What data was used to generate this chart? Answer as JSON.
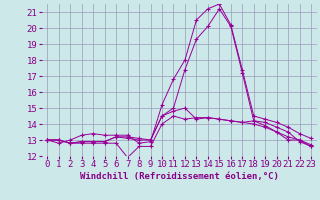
{
  "x": [
    0,
    1,
    2,
    3,
    4,
    5,
    6,
    7,
    8,
    9,
    10,
    11,
    12,
    13,
    14,
    15,
    16,
    17,
    18,
    19,
    20,
    21,
    22,
    23
  ],
  "series": [
    [
      13.0,
      13.0,
      12.8,
      12.8,
      12.8,
      12.8,
      12.8,
      11.9,
      12.6,
      12.6,
      14.0,
      14.5,
      14.3,
      14.4,
      14.4,
      14.3,
      14.2,
      14.1,
      14.0,
      13.8,
      13.5,
      13.0,
      13.0,
      12.6
    ],
    [
      13.0,
      13.0,
      12.8,
      12.9,
      12.9,
      12.9,
      13.2,
      13.1,
      13.0,
      13.0,
      14.5,
      14.8,
      15.0,
      14.3,
      14.4,
      14.3,
      14.2,
      14.1,
      14.2,
      13.9,
      13.5,
      13.2,
      13.0,
      12.7
    ],
    [
      13.0,
      13.0,
      12.8,
      12.9,
      12.9,
      12.9,
      13.2,
      13.2,
      13.1,
      13.0,
      14.5,
      15.0,
      17.4,
      19.3,
      20.1,
      21.2,
      20.1,
      17.2,
      14.2,
      14.1,
      13.8,
      13.5,
      12.9,
      12.6
    ],
    [
      13.0,
      12.8,
      13.0,
      13.3,
      13.4,
      13.3,
      13.3,
      13.3,
      12.8,
      12.9,
      15.2,
      16.8,
      18.0,
      20.5,
      21.2,
      21.5,
      20.2,
      17.4,
      14.5,
      14.3,
      14.1,
      13.8,
      13.4,
      13.1
    ]
  ],
  "line_color": "#990099",
  "bg_color": "#cce8e8",
  "grid_color": "#9999bb",
  "xlabel": "Windchill (Refroidissement éolien,°C)",
  "ylim": [
    12,
    21.5
  ],
  "xlim": [
    -0.5,
    23.5
  ],
  "yticks": [
    12,
    13,
    14,
    15,
    16,
    17,
    18,
    19,
    20,
    21
  ],
  "xticks": [
    0,
    1,
    2,
    3,
    4,
    5,
    6,
    7,
    8,
    9,
    10,
    11,
    12,
    13,
    14,
    15,
    16,
    17,
    18,
    19,
    20,
    21,
    22,
    23
  ],
  "title_color": "#880088",
  "label_fontsize": 6.5,
  "tick_fontsize": 6.5
}
